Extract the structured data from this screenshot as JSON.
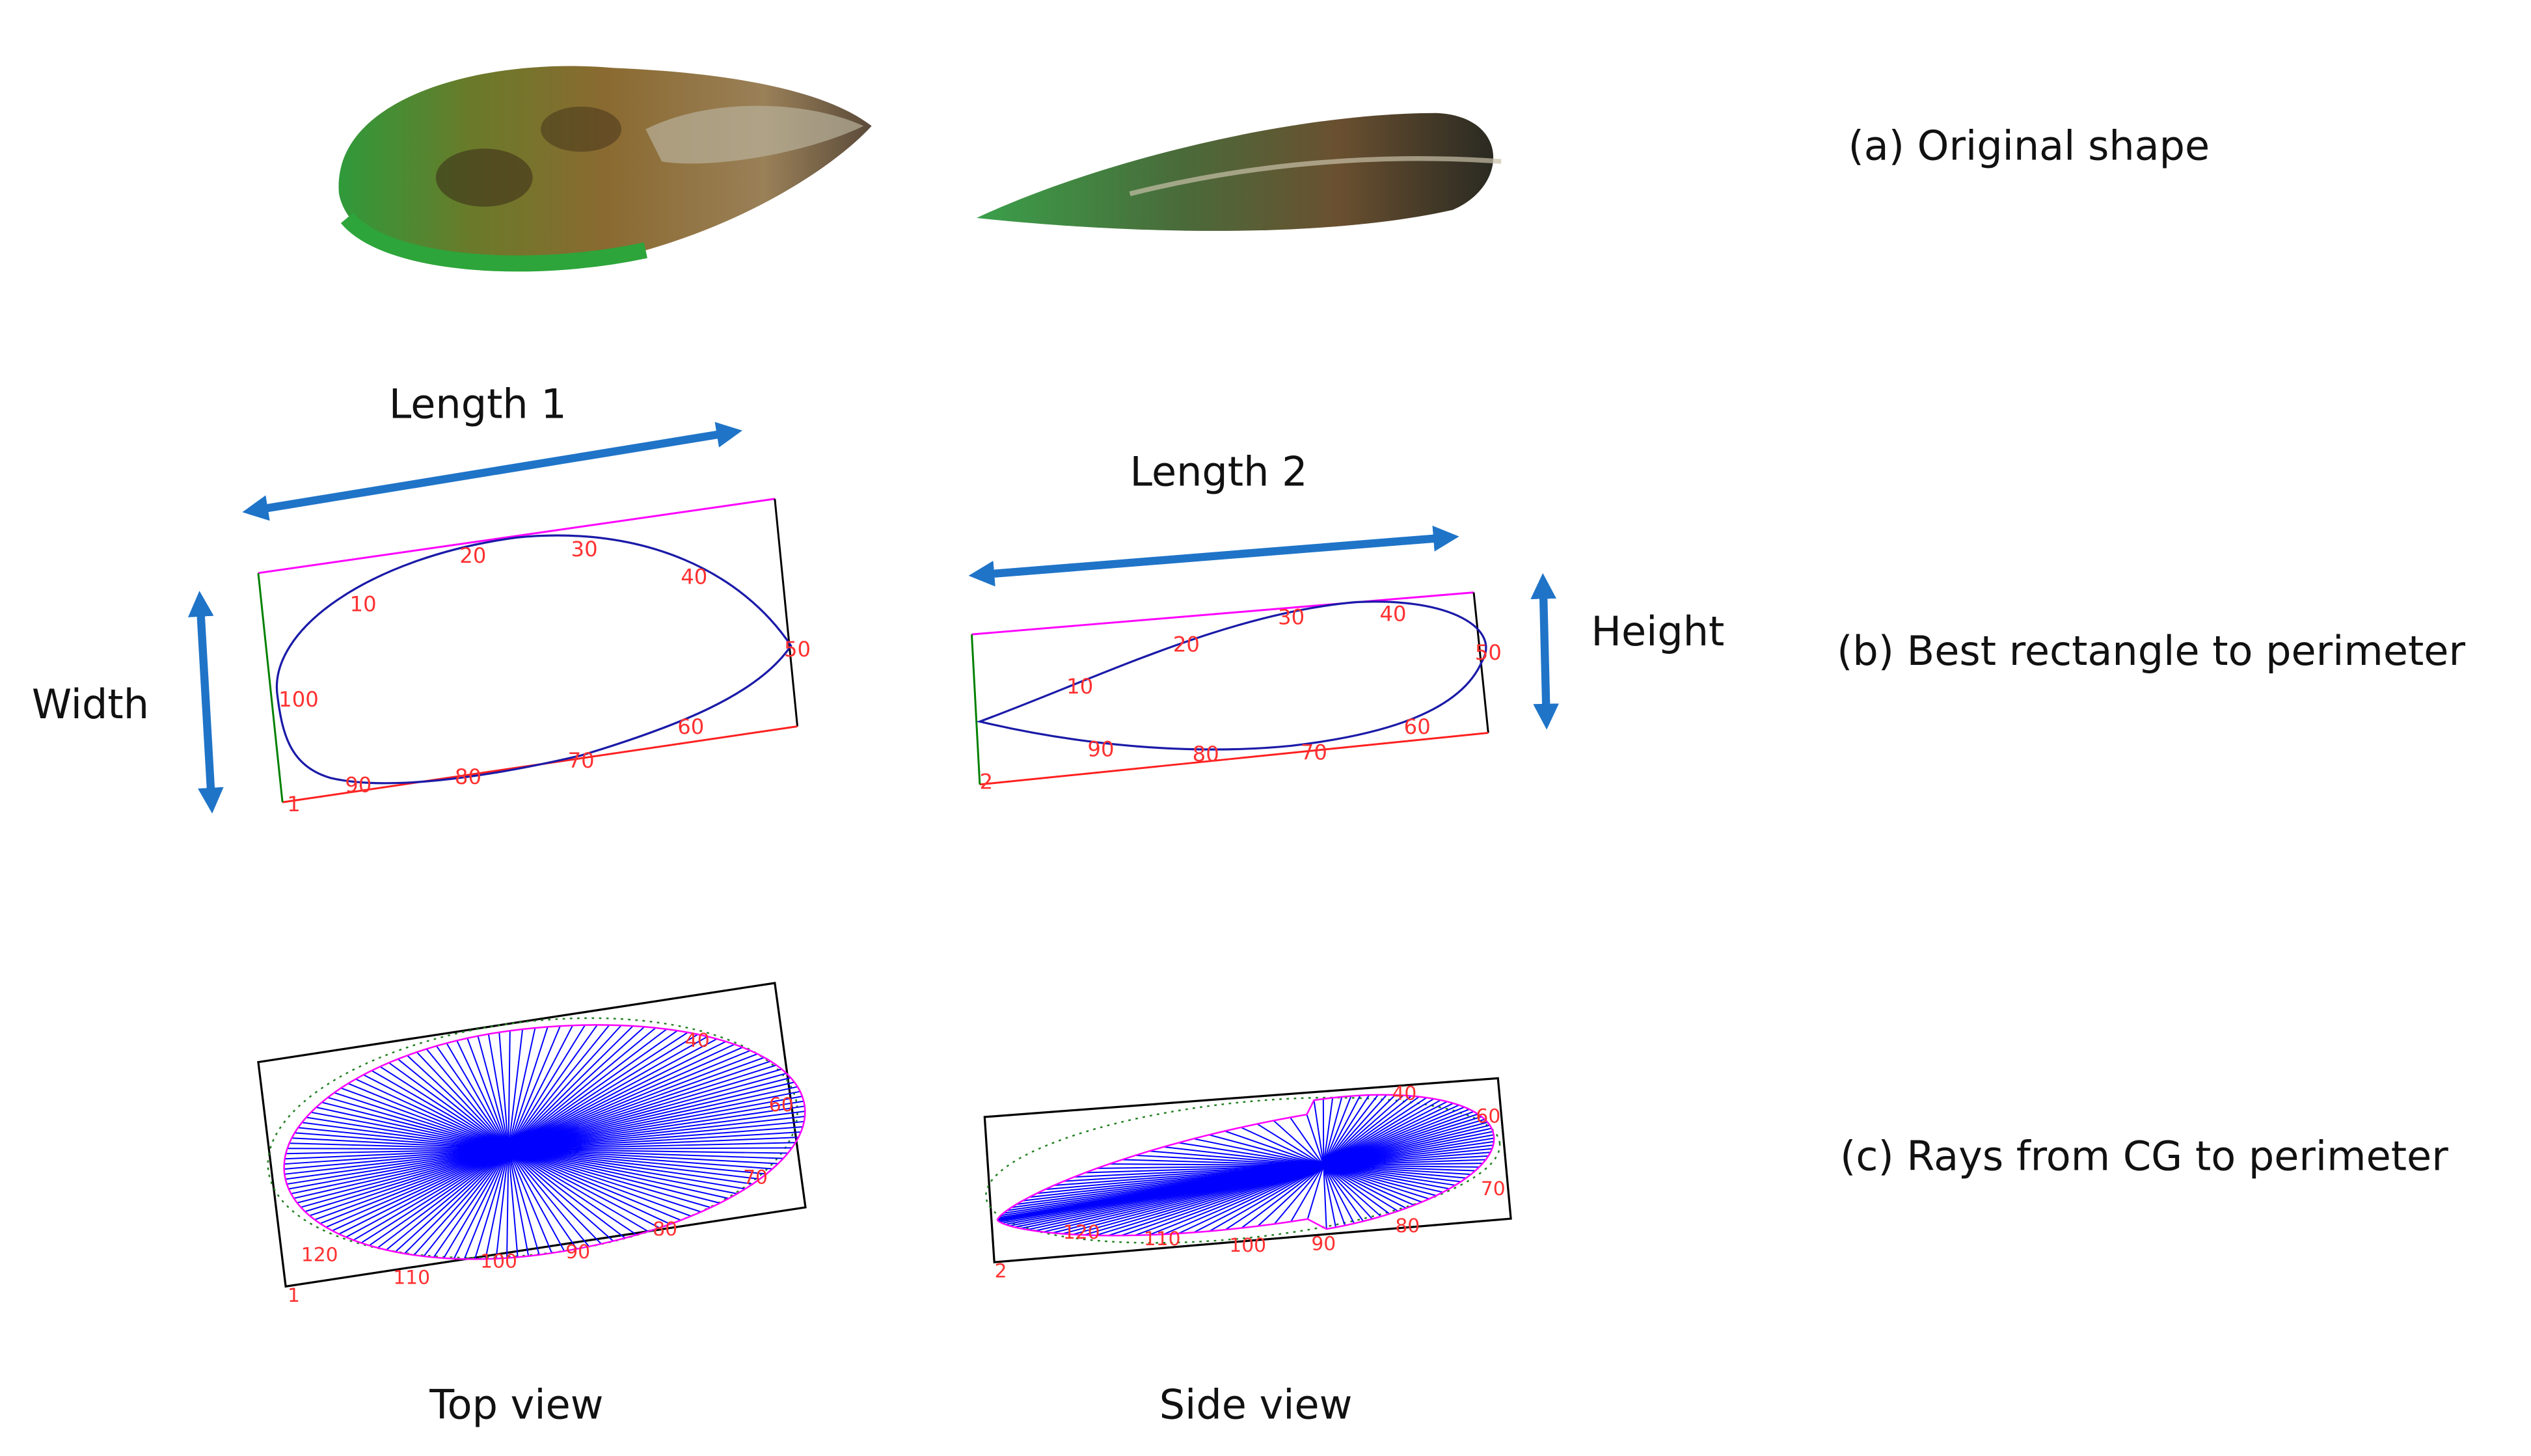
{
  "rows": [
    {
      "label": "(a) Original shape"
    },
    {
      "label": "(b) Best rectangle to perimeter"
    },
    {
      "label": "(c) Rays from CG to perimeter"
    }
  ],
  "columns": [
    "Top view",
    "Side view"
  ],
  "dimensions": {
    "length1": "Length 1",
    "length2": "Length 2",
    "width": "Width",
    "height": "Height"
  },
  "outline_labels": {
    "top_b": [
      "10",
      "20",
      "30",
      "40",
      "50",
      "60",
      "70",
      "80",
      "90",
      "100",
      "1"
    ],
    "side_b": [
      "10",
      "20",
      "30",
      "40",
      "50",
      "60",
      "70",
      "80",
      "90",
      "2"
    ],
    "top_c": [
      "1",
      "120",
      "110",
      "100",
      "90",
      "80",
      "70",
      "60",
      "40"
    ],
    "side_c": [
      "2",
      "120",
      "110",
      "100",
      "90",
      "80",
      "70",
      "60",
      "40"
    ]
  }
}
